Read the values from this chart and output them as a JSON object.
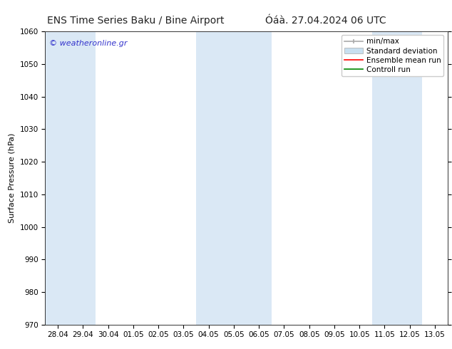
{
  "title_left": "ENS Time Series Baku / Bine Airport",
  "title_right": "Óáà. 27.04.2024 06 UTC",
  "ylabel": "Surface Pressure (hPa)",
  "ylim": [
    970,
    1060
  ],
  "yticks": [
    970,
    980,
    990,
    1000,
    1010,
    1020,
    1030,
    1040,
    1050,
    1060
  ],
  "xtick_labels": [
    "28.04",
    "29.04",
    "30.04",
    "01.05",
    "02.05",
    "03.05",
    "04.05",
    "05.05",
    "06.05",
    "07.05",
    "08.05",
    "09.05",
    "10.05",
    "11.05",
    "12.05",
    "13.05"
  ],
  "watermark": "© weatheronline.gr",
  "watermark_color": "#3333cc",
  "background_color": "#ffffff",
  "band_color": "#dae8f5",
  "band_positions": [
    0,
    1,
    6,
    7,
    8,
    13,
    14
  ],
  "legend_labels": [
    "min/max",
    "Standard deviation",
    "Ensemble mean run",
    "Controll run"
  ],
  "title_fontsize": 10,
  "axis_label_fontsize": 8,
  "tick_fontsize": 7.5,
  "legend_fontsize": 7.5
}
